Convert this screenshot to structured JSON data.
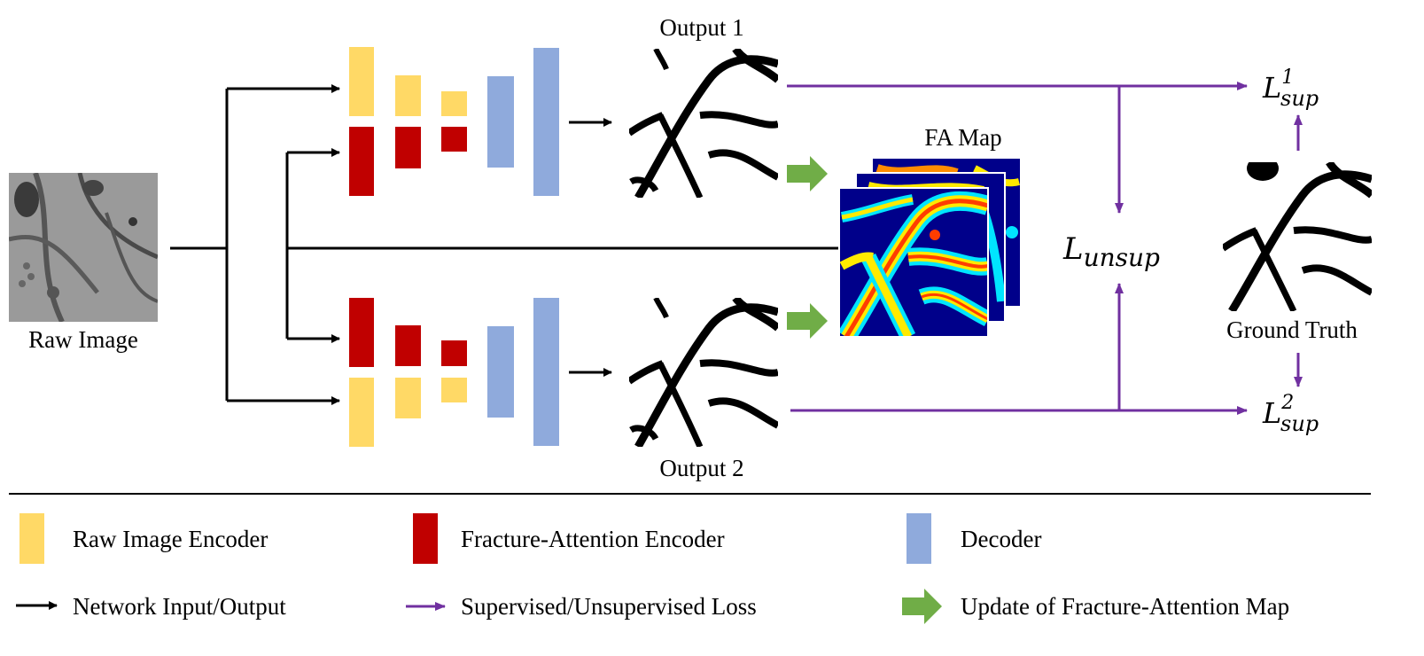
{
  "colors": {
    "raw_encoder": "#FFD966",
    "fa_encoder": "#C00000",
    "decoder": "#8FAADC",
    "network_arrow": "#000000",
    "loss_arrow": "#7030A0",
    "update_arrow": "#70AD47"
  },
  "labels": {
    "raw_image": "Raw Image",
    "output1": "Output 1",
    "output2": "Output 2",
    "fa_map": "FA Map",
    "ground_truth": "Ground Truth"
  },
  "losses": {
    "unsup": {
      "base": "L",
      "sub": "unsup"
    },
    "sup1": {
      "base": "L",
      "sup": "1",
      "sub": "sup"
    },
    "sup2": {
      "base": "L",
      "sup": "2",
      "sub": "sup"
    }
  },
  "legend": {
    "raw_encoder": "Raw Image Encoder",
    "fa_encoder": "Fracture-Attention Encoder",
    "decoder": "Decoder",
    "network_io": "Network Input/Output",
    "loss": "Supervised/Unsupervised Loss",
    "update": "Update of Fracture-Attention Map"
  }
}
